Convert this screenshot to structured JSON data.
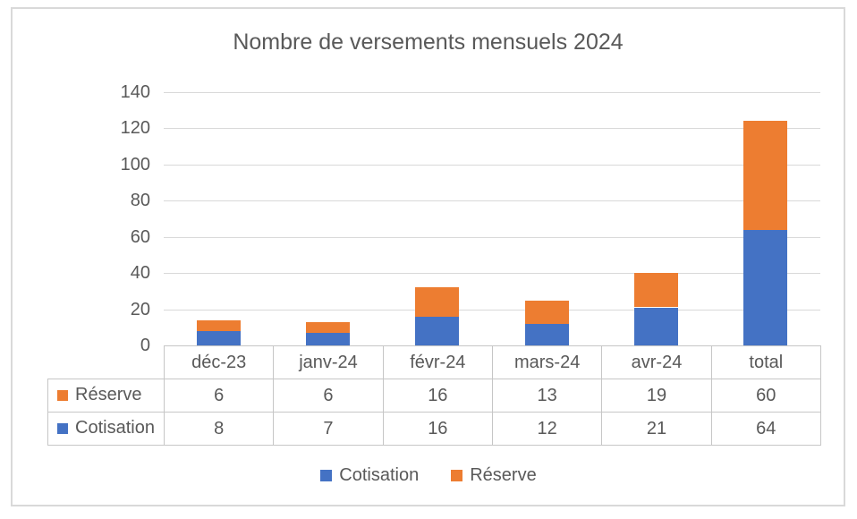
{
  "chart": {
    "title": "Nombre de versements mensuels 2024",
    "background_color": "#ffffff",
    "text_color": "#595959",
    "gridline_color": "#D9D9D9",
    "frame_border_color": "#D9D9D9",
    "table_border_color": "#C6C6C6",
    "series_colors": {
      "cotisation": "#4472C4",
      "reserve": "#ED7D31"
    }
  },
  "chart_data": {
    "type": "bar",
    "stacked": true,
    "title": "Nombre de versements mensuels 2024",
    "categories": [
      "déc-23",
      "janv-24",
      "févr-24",
      "mars-24",
      "avr-24",
      "total"
    ],
    "series": [
      {
        "name": "Cotisation",
        "color": "#4472C4",
        "values": [
          8,
          7,
          16,
          12,
          21,
          64
        ]
      },
      {
        "name": "Réserve",
        "color": "#ED7D31",
        "values": [
          6,
          6,
          16,
          13,
          19,
          60
        ]
      }
    ],
    "stack_totals": [
      14,
      13,
      32,
      25,
      40,
      124
    ],
    "xlabel": "",
    "ylabel": "",
    "ylim": [
      0,
      140
    ],
    "yticks": [
      0,
      20,
      40,
      60,
      80,
      100,
      120,
      140
    ],
    "grid": true,
    "legend_position": "bottom",
    "data_table_shown": true
  },
  "table": {
    "column_headers": [
      "déc-23",
      "janv-24",
      "févr-24",
      "mars-24",
      "avr-24",
      "total"
    ],
    "rows": [
      {
        "label": "Réserve",
        "color": "#ED7D31",
        "values": [
          "6",
          "6",
          "16",
          "13",
          "19",
          "60"
        ]
      },
      {
        "label": "Cotisation",
        "color": "#4472C4",
        "values": [
          "8",
          "7",
          "16",
          "12",
          "21",
          "64"
        ]
      }
    ]
  },
  "legend": {
    "items": [
      {
        "label": "Cotisation",
        "color": "#4472C4"
      },
      {
        "label": "Réserve",
        "color": "#ED7D31"
      }
    ]
  }
}
